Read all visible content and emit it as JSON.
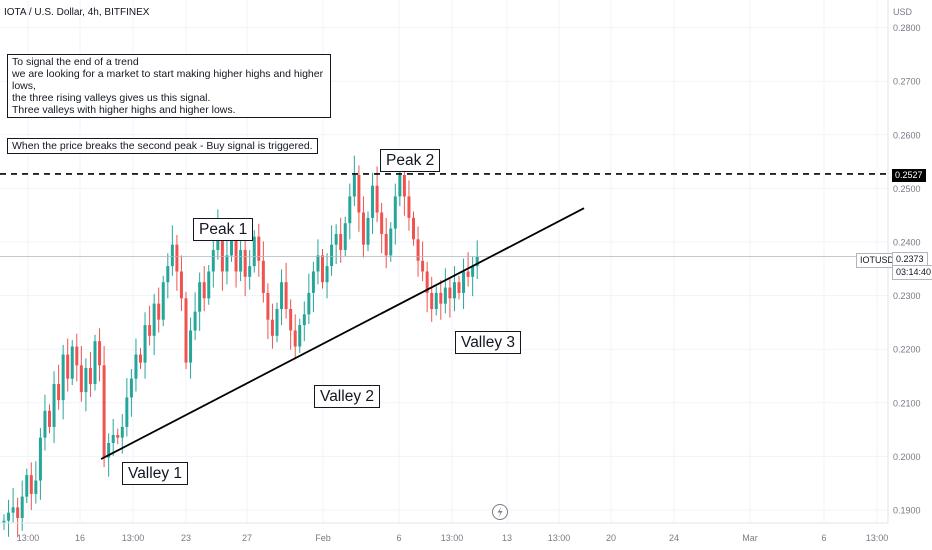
{
  "header": {
    "title": "IOTA / U.S. Dollar, 4h, BITFINEX",
    "currency": "USD"
  },
  "notes": {
    "signal": "To signal the end of a trend\n we are looking for a market to start making higher highs and higher lows,\nthe three rising valleys gives us this signal.\nThree valleys with higher highs and higher lows.",
    "trigger": "When the price breaks the second peak - Buy signal is triggered."
  },
  "labels": {
    "peak1": "Peak 1",
    "peak2": "Peak 2",
    "valley1": "Valley 1",
    "valley2": "Valley 2",
    "valley3": "Valley 3"
  },
  "price_tag": {
    "symbol": "IOTUSD",
    "price": "0.2373",
    "countdown": "03:14:40"
  },
  "level_tag": "0.2527",
  "colors": {
    "up": "#26a69a",
    "down": "#ef5350",
    "line": "#000000",
    "text": "#131722",
    "axis": "#787b86",
    "grid": "#f0f3fa"
  },
  "chart_data": {
    "type": "candlestick",
    "ylim": [
      0.1875,
      0.2875
    ],
    "y_ticks": [
      "0.2800",
      "0.2700",
      "0.2600",
      "0.2500",
      "0.2400",
      "0.2300",
      "0.2200",
      "0.2100",
      "0.2000",
      "0.1900"
    ],
    "x_ticks": [
      "13:00",
      "16",
      "13:00",
      "23",
      "27",
      "Feb",
      "6",
      "13:00",
      "13",
      "13:00",
      "20",
      "24",
      "Mar",
      "6",
      "13:00"
    ],
    "resistance_level": 0.2527,
    "last_price": 0.2373,
    "trendline": {
      "from": {
        "bar": 22,
        "price": 0.1995
      },
      "to": {
        "bar": 115,
        "price": 0.2335
      }
    },
    "candles": [
      [
        0.1875,
        0.188
      ],
      [
        0.188,
        0.1895
      ],
      [
        0.1895,
        0.1905
      ],
      [
        0.1905,
        0.1885
      ],
      [
        0.1885,
        0.1925
      ],
      [
        0.1925,
        0.1965
      ],
      [
        0.1965,
        0.193
      ],
      [
        0.193,
        0.1955
      ],
      [
        0.1955,
        0.2035
      ],
      [
        0.2035,
        0.2085
      ],
      [
        0.2085,
        0.2055
      ],
      [
        0.2055,
        0.2135
      ],
      [
        0.2135,
        0.2105
      ],
      [
        0.2105,
        0.219
      ],
      [
        0.219,
        0.2145
      ],
      [
        0.2145,
        0.2205
      ],
      [
        0.2205,
        0.217
      ],
      [
        0.217,
        0.212
      ],
      [
        0.212,
        0.2165
      ],
      [
        0.2165,
        0.2135
      ],
      [
        0.2135,
        0.2215
      ],
      [
        0.2215,
        0.217
      ],
      [
        0.217,
        0.1998
      ],
      [
        0.1998,
        0.2025
      ],
      [
        0.2025,
        0.204
      ],
      [
        0.204,
        0.2035
      ],
      [
        0.2035,
        0.2055
      ],
      [
        0.2055,
        0.211
      ],
      [
        0.211,
        0.2145
      ],
      [
        0.2145,
        0.219
      ],
      [
        0.219,
        0.2175
      ],
      [
        0.2175,
        0.2245
      ],
      [
        0.2245,
        0.2225
      ],
      [
        0.2225,
        0.2285
      ],
      [
        0.2285,
        0.2255
      ],
      [
        0.2255,
        0.2325
      ],
      [
        0.2325,
        0.2355
      ],
      [
        0.2355,
        0.2395
      ],
      [
        0.2395,
        0.2345
      ],
      [
        0.2345,
        0.2295
      ],
      [
        0.2295,
        0.2175
      ],
      [
        0.2175,
        0.2235
      ],
      [
        0.2235,
        0.227
      ],
      [
        0.227,
        0.2325
      ],
      [
        0.2325,
        0.2295
      ],
      [
        0.2295,
        0.2345
      ],
      [
        0.2345,
        0.2385
      ],
      [
        0.2385,
        0.2425
      ],
      [
        0.2425,
        0.2345
      ],
      [
        0.2345,
        0.2375
      ],
      [
        0.2375,
        0.2415
      ],
      [
        0.2415,
        0.2345
      ],
      [
        0.2345,
        0.2385
      ],
      [
        0.2385,
        0.2335
      ],
      [
        0.2335,
        0.2355
      ],
      [
        0.2355,
        0.241
      ],
      [
        0.241,
        0.2365
      ],
      [
        0.2365,
        0.2305
      ],
      [
        0.2305,
        0.2255
      ],
      [
        0.2255,
        0.2225
      ],
      [
        0.2225,
        0.2275
      ],
      [
        0.2275,
        0.2325
      ],
      [
        0.2325,
        0.2275
      ],
      [
        0.2275,
        0.2235
      ],
      [
        0.2235,
        0.2205
      ],
      [
        0.2205,
        0.2245
      ],
      [
        0.2245,
        0.2265
      ],
      [
        0.2265,
        0.2305
      ],
      [
        0.2305,
        0.2345
      ],
      [
        0.2345,
        0.2375
      ],
      [
        0.2375,
        0.2325
      ],
      [
        0.2325,
        0.2355
      ],
      [
        0.2355,
        0.2395
      ],
      [
        0.2395,
        0.2415
      ],
      [
        0.2415,
        0.2385
      ],
      [
        0.2385,
        0.2435
      ],
      [
        0.2435,
        0.2485
      ],
      [
        0.2485,
        0.2525
      ],
      [
        0.2525,
        0.2455
      ],
      [
        0.2455,
        0.2395
      ],
      [
        0.2395,
        0.2445
      ],
      [
        0.2445,
        0.2505
      ],
      [
        0.2505,
        0.2455
      ],
      [
        0.2455,
        0.2415
      ],
      [
        0.2415,
        0.2375
      ],
      [
        0.2375,
        0.2425
      ],
      [
        0.2425,
        0.2485
      ],
      [
        0.2485,
        0.2525
      ],
      [
        0.2525,
        0.2485
      ],
      [
        0.2485,
        0.2445
      ],
      [
        0.2445,
        0.2405
      ],
      [
        0.2405,
        0.2365
      ],
      [
        0.2365,
        0.2345
      ],
      [
        0.2345,
        0.2305
      ],
      [
        0.2305,
        0.2275
      ],
      [
        0.2275,
        0.2305
      ],
      [
        0.2305,
        0.2285
      ],
      [
        0.2285,
        0.2315
      ],
      [
        0.2315,
        0.2295
      ],
      [
        0.2295,
        0.2325
      ],
      [
        0.2325,
        0.2305
      ],
      [
        0.2305,
        0.2345
      ],
      [
        0.2345,
        0.2335
      ],
      [
        0.2335,
        0.2355
      ],
      [
        0.2355,
        0.2373
      ]
    ]
  }
}
